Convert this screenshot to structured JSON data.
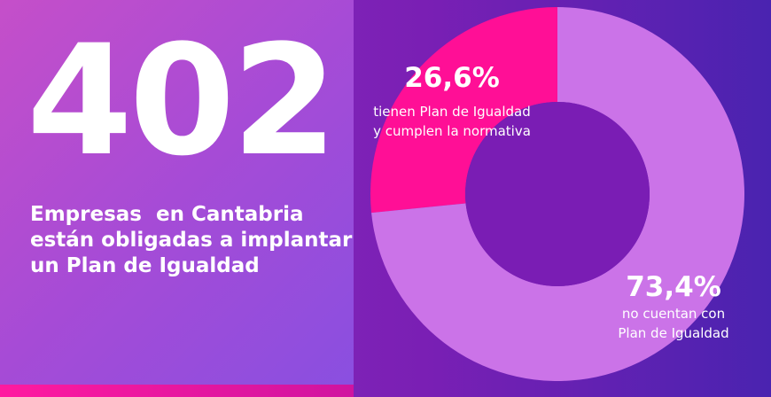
{
  "stat": {
    "number": "402",
    "headline": [
      "Empresas  en Cantabria",
      "están obligadas a implantar",
      "un Plan de Igualdad"
    ]
  },
  "colors": {
    "segment_compliant": "#ff0f96",
    "segment_without_plan": "#cb73e8",
    "donut_hole": "#7a1db4"
  },
  "chart_data": {
    "type": "pie",
    "title": "",
    "slices": [
      {
        "value": 26.6,
        "label": "26,6%",
        "description": [
          "tienen Plan de Igualdad",
          "y cumplen la normativa"
        ]
      },
      {
        "value": 73.4,
        "label": "73,4%",
        "description": [
          "no cuentan con",
          "Plan de Igualdad"
        ]
      }
    ]
  }
}
